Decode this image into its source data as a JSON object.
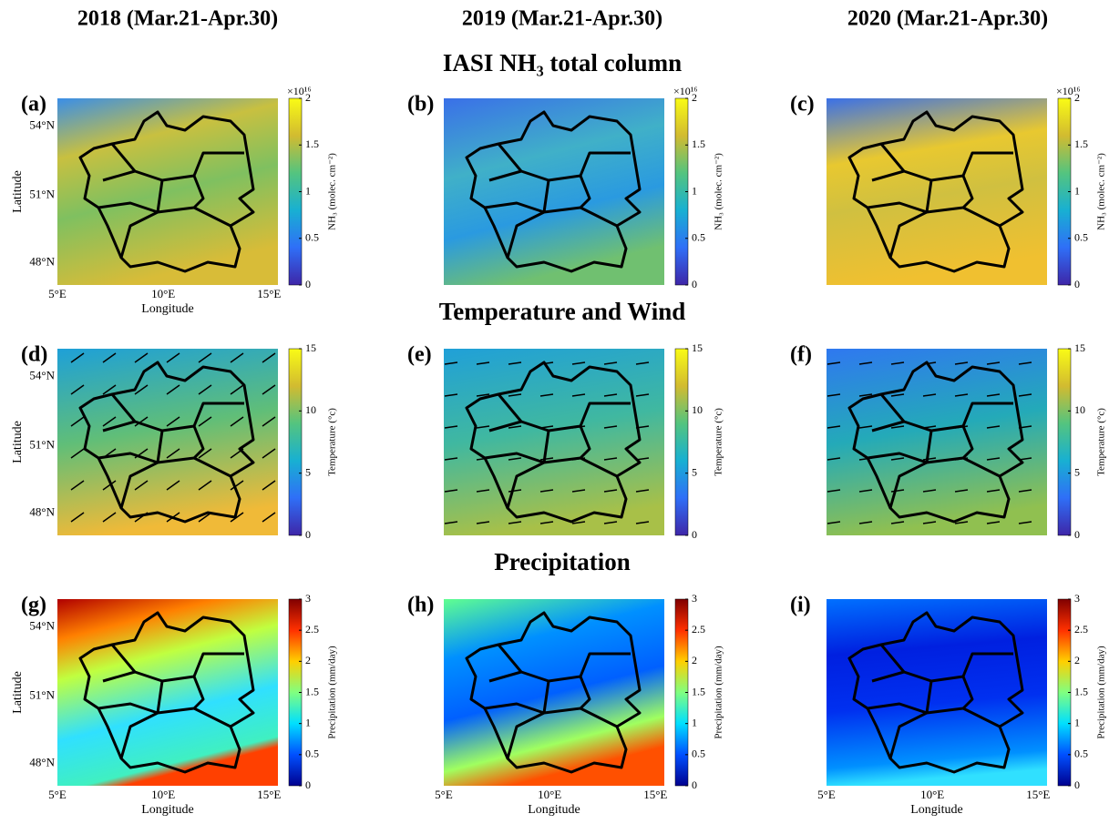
{
  "columns": [
    "2018 (Mar.21-Apr.30)",
    "2019 (Mar.21-Apr.30)",
    "2020 (Mar.21-Apr.30)"
  ],
  "sections": [
    "IASI NH₃ total column",
    "Temperature and Wind",
    "Precipitation"
  ],
  "panels": [
    "(a)",
    "(b)",
    "(c)",
    "(d)",
    "(e)",
    "(f)",
    "(g)",
    "(h)",
    "(i)"
  ],
  "axes": {
    "x_label": "Longitude",
    "y_label": "Latitude",
    "xticks": [
      "5°E",
      "10°E",
      "15°E"
    ],
    "yticks": [
      "54°N",
      "51°N",
      "48°N"
    ]
  },
  "colorbars": [
    {
      "label": "NH₃ (molec. cm⁻²)",
      "exponent": "×10¹⁶",
      "lim": [
        0,
        2
      ],
      "ticks": [
        0,
        0.5,
        1,
        1.5,
        2
      ],
      "colormap": [
        "#3e26a8",
        "#2f6ff7",
        "#18b0d2",
        "#54c47f",
        "#d2bb30",
        "#f9fb15"
      ]
    },
    {
      "label": "Temperature (°c)",
      "lim": [
        0,
        15
      ],
      "ticks": [
        0,
        5,
        10,
        15
      ],
      "colormap": [
        "#3e26a8",
        "#2f6ff7",
        "#18b0d2",
        "#54c47f",
        "#d2bb30",
        "#f9fb15"
      ]
    },
    {
      "label": "Precipitation (mm/day)",
      "lim": [
        0,
        3
      ],
      "ticks": [
        0,
        0.5,
        1,
        1.5,
        2,
        2.5,
        3
      ],
      "colormap": [
        "#00008f",
        "#0050ff",
        "#00dfff",
        "#80ff80",
        "#ffcf00",
        "#ff3000",
        "#800000"
      ]
    }
  ]
}
